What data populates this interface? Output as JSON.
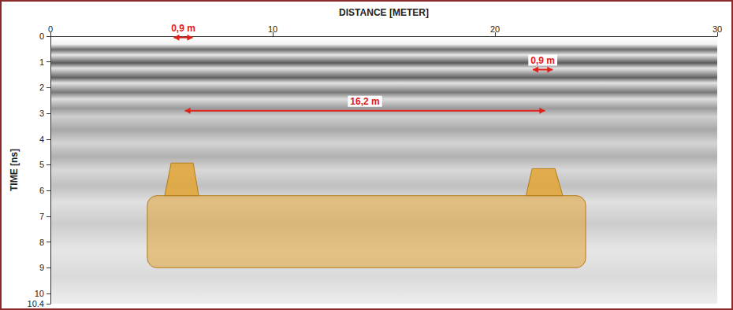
{
  "chart_data": {
    "type": "radargram",
    "x_label": "DISTANCE [METER]",
    "y_label": "TIME [ns]",
    "xlim": [
      0,
      30
    ],
    "xticks": [
      0,
      10,
      20,
      30
    ],
    "ylim": [
      0,
      10.4
    ],
    "yticks": [
      0,
      1,
      2,
      3,
      4,
      5,
      6,
      7,
      8,
      9,
      10
    ],
    "grid": false,
    "color": "#e0201b",
    "measurements": [
      {
        "label": "0,9 m",
        "x": [
          5.55,
          6.4
        ],
        "y": 0.05
      },
      {
        "label": "0,9 m",
        "x": [
          21.7,
          22.6
        ],
        "y": 1.3
      },
      {
        "label": "16,2 m",
        "x": [
          6.05,
          22.25
        ],
        "y": 2.9
      }
    ],
    "shapes": [
      {
        "kind": "rect",
        "x": [
          4.36,
          24.08
        ],
        "y": [
          6.2,
          9.0
        ]
      },
      {
        "kind": "polygon",
        "points": [
          [
            5.14,
            6.2
          ],
          [
            5.43,
            4.93
          ],
          [
            6.42,
            4.93
          ],
          [
            6.67,
            6.2
          ]
        ]
      },
      {
        "kind": "polygon",
        "points": [
          [
            21.4,
            6.2
          ],
          [
            21.67,
            5.15
          ],
          [
            22.7,
            5.15
          ],
          [
            23.05,
            6.2
          ]
        ]
      }
    ]
  }
}
